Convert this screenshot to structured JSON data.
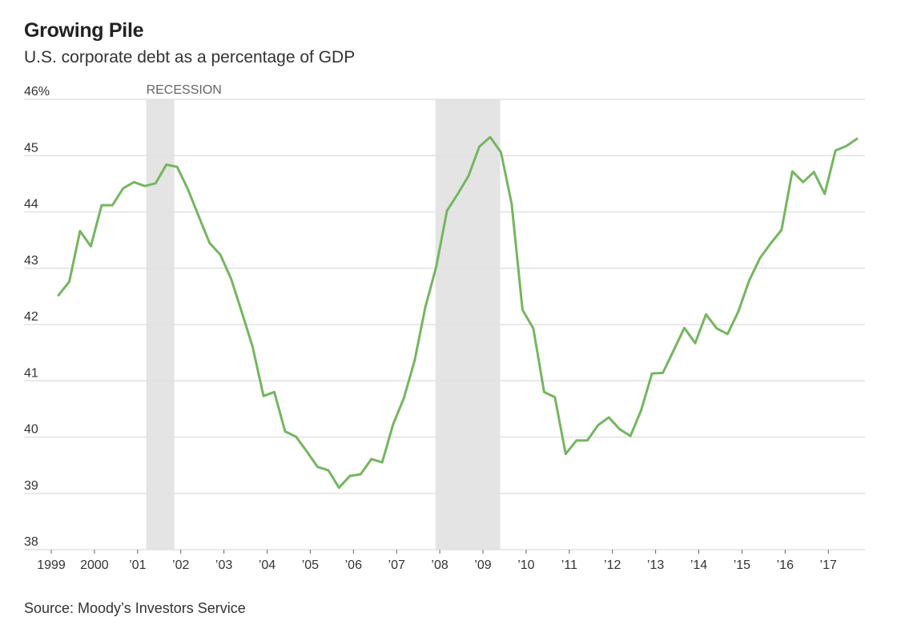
{
  "header": {
    "title": "Growing Pile",
    "subtitle": "U.S. corporate debt as a percentage of GDP"
  },
  "footer": {
    "source": "Source: Moody’s Investors Service"
  },
  "colors": {
    "line": "#74b65f",
    "recession": "#e4e4e4",
    "grid": "#e2e2e2"
  },
  "chart_data": {
    "type": "line",
    "title": "Growing Pile",
    "subtitle": "U.S. corporate debt as a percentage of GDP",
    "xlabel": "",
    "ylabel": "",
    "frequency": "quarterly",
    "start": "1999 Q1",
    "end": "2017 Q3",
    "ylim": [
      38,
      46
    ],
    "y_ticks": [
      {
        "value": 46,
        "label": "46%"
      },
      {
        "value": 45,
        "label": "45"
      },
      {
        "value": 44,
        "label": "44"
      },
      {
        "value": 43,
        "label": "43"
      },
      {
        "value": 42,
        "label": "42"
      },
      {
        "value": 41,
        "label": "41"
      },
      {
        "value": 40,
        "label": "40"
      },
      {
        "value": 39,
        "label": "39"
      },
      {
        "value": 38,
        "label": "38"
      }
    ],
    "x_ticks": [
      {
        "year": 1999,
        "label": "1999"
      },
      {
        "year": 2000,
        "label": "2000"
      },
      {
        "year": 2001,
        "label": "’01"
      },
      {
        "year": 2002,
        "label": "’02"
      },
      {
        "year": 2003,
        "label": "’03"
      },
      {
        "year": 2004,
        "label": "’04"
      },
      {
        "year": 2005,
        "label": "’05"
      },
      {
        "year": 2006,
        "label": "’06"
      },
      {
        "year": 2007,
        "label": "’07"
      },
      {
        "year": 2008,
        "label": "’08"
      },
      {
        "year": 2009,
        "label": "’09"
      },
      {
        "year": 2010,
        "label": "’10"
      },
      {
        "year": 2011,
        "label": "’11"
      },
      {
        "year": 2012,
        "label": "’12"
      },
      {
        "year": 2013,
        "label": "’13"
      },
      {
        "year": 2014,
        "label": "’14"
      },
      {
        "year": 2015,
        "label": "’15"
      },
      {
        "year": 2016,
        "label": "’16"
      },
      {
        "year": 2017,
        "label": "’17"
      }
    ],
    "grid": true,
    "annotations": [
      {
        "text": "RECESSION",
        "attached_to": "recession-1"
      }
    ],
    "recessions": [
      {
        "id": "recession-1",
        "start": 2001.2,
        "end": 2001.85
      },
      {
        "id": "recession-2",
        "start": 2007.9,
        "end": 2009.4
      }
    ],
    "series": [
      {
        "name": "Corporate debt % of GDP",
        "values": [
          42.52,
          42.76,
          43.66,
          43.39,
          44.12,
          44.12,
          44.42,
          44.53,
          44.46,
          44.51,
          44.84,
          44.8,
          44.4,
          43.92,
          43.45,
          43.24,
          42.81,
          42.21,
          41.6,
          40.73,
          40.8,
          40.1,
          40.01,
          39.75,
          39.47,
          39.41,
          39.1,
          39.31,
          39.34,
          39.61,
          39.55,
          40.22,
          40.69,
          41.36,
          42.31,
          43.02,
          44.02,
          44.32,
          44.64,
          45.16,
          45.33,
          45.06,
          44.14,
          42.26,
          41.93,
          40.8,
          40.71,
          39.7,
          39.94,
          39.94,
          40.21,
          40.35,
          40.14,
          40.02,
          40.48,
          41.13,
          41.14,
          41.54,
          41.94,
          41.67,
          42.18,
          41.93,
          41.83,
          42.23,
          42.78,
          43.18,
          43.44,
          43.68,
          44.72,
          44.53,
          44.71,
          44.32,
          45.09,
          45.17,
          45.3
        ]
      }
    ]
  }
}
